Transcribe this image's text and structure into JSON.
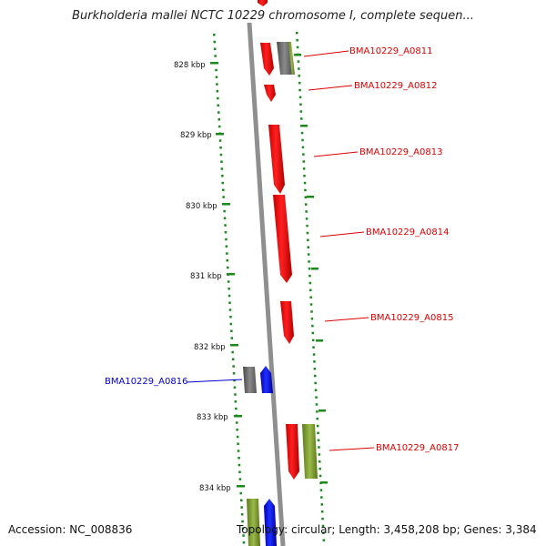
{
  "title": "Burkholderia mallei NCTC 10229 chromosome I, complete sequen...",
  "footer": {
    "accession": "Accession: NC_008836",
    "topology": "Topology: circular; Length: 3,458,208 bp; Genes: 3,384"
  },
  "colors": {
    "forward": "#ff0000",
    "reverse": "#0000ff",
    "other_gray": "#6e6e6e",
    "other_green": "#7c9a2c",
    "ticks": "#1a8a1a",
    "backbone": "#8f8f8f"
  },
  "scale": {
    "unit": "kbp",
    "ticks": [
      "828 kbp",
      "829 kbp",
      "830 kbp",
      "831 kbp",
      "832 kbp",
      "833 kbp",
      "834 kbp"
    ]
  },
  "gene_labels": [
    {
      "name": "BMA10229_A0811",
      "strand": "forward"
    },
    {
      "name": "BMA10229_A0812",
      "strand": "forward"
    },
    {
      "name": "BMA10229_A0813",
      "strand": "forward"
    },
    {
      "name": "BMA10229_A0814",
      "strand": "forward"
    },
    {
      "name": "BMA10229_A0815",
      "strand": "forward"
    },
    {
      "name": "BMA10229_A0816",
      "strand": "reverse"
    },
    {
      "name": "BMA10229_A0817",
      "strand": "forward"
    }
  ]
}
